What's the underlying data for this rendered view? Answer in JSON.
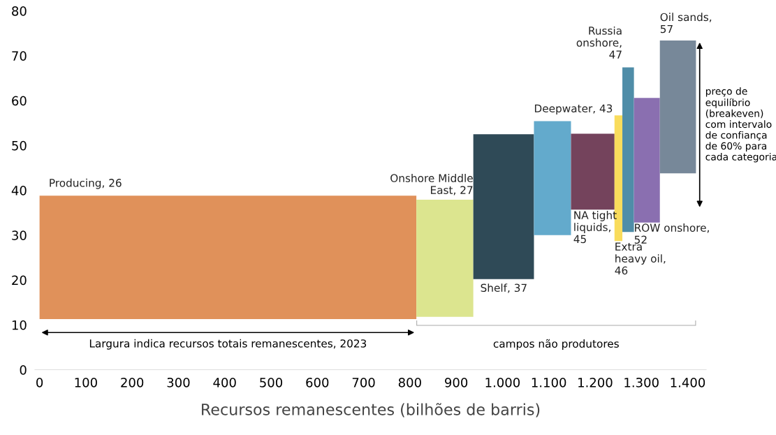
{
  "chart_data": {
    "type": "histogram",
    "xlabel": "Recursos remanescentes (bilhões de barris)",
    "xlim": [
      -10,
      1440
    ],
    "ylim": [
      0,
      80
    ],
    "xticks": [
      0,
      100,
      200,
      300,
      400,
      500,
      600,
      700,
      800,
      900,
      {
        "value": 1000,
        "label": "1.000"
      },
      {
        "value": 1100,
        "label": "1.100"
      },
      {
        "value": 1200,
        "label": "1.200"
      },
      {
        "value": 1300,
        "label": "1.300"
      },
      {
        "value": 1400,
        "label": "1.400"
      }
    ],
    "yticks": [
      0,
      10,
      20,
      30,
      40,
      50,
      60,
      70,
      80
    ],
    "grid": false,
    "legend": false,
    "bins": [
      0,
      814,
      937,
      1068,
      1148,
      1242,
      1259,
      1284,
      1340,
      1418
    ],
    "values": [
      27.5,
      26.1,
      32.3,
      25.4,
      16.9,
      28.0,
      36.7,
      27.8,
      29.6
    ],
    "base": [
      11.3,
      11.8,
      20.2,
      30.0,
      35.7,
      28.7,
      30.7,
      32.8,
      43.8
    ],
    "colors": [
      "#e0915a",
      "#dce58f",
      "#2f4a57",
      "#63aacc",
      "#74435c",
      "#f9dc5c",
      "#4f8da8",
      "#8a6fb0",
      "#778899"
    ],
    "annotations": [
      "Largura indica recursos totais remanescentes, 2023",
      "campos não produtores",
      "preço de\nequilíbrio\n(breakeven)\ncom intervalo\nde confiança\nde 60% para\ncada categoria",
      {
        "text": "Producing, 26",
        "x": 20,
        "y": 38.8
      },
      {
        "text": "Onshore Middle\nEast, 27",
        "x": 875,
        "y": 37.9
      },
      {
        "text": "Shelf, 37",
        "x": 1002,
        "y": 20.2
      },
      {
        "text": "Deepwater, 43",
        "x": 1108,
        "y": 55.4
      },
      {
        "text": "NA tight\nliquids,\n45",
        "x": 1195,
        "y": 35.7
      },
      {
        "text": "Extra\nheavy oil,\n46",
        "x": 1250,
        "y": 28.7
      },
      {
        "text": "Russia\nonshore,\n47",
        "x": 1271,
        "y": 67.4
      },
      {
        "text": "ROW onshore,\n52",
        "x": 1312,
        "y": 32.8
      },
      {
        "text": "Oil sands,\n57",
        "x": 1379,
        "y": 73.4
      }
    ]
  }
}
